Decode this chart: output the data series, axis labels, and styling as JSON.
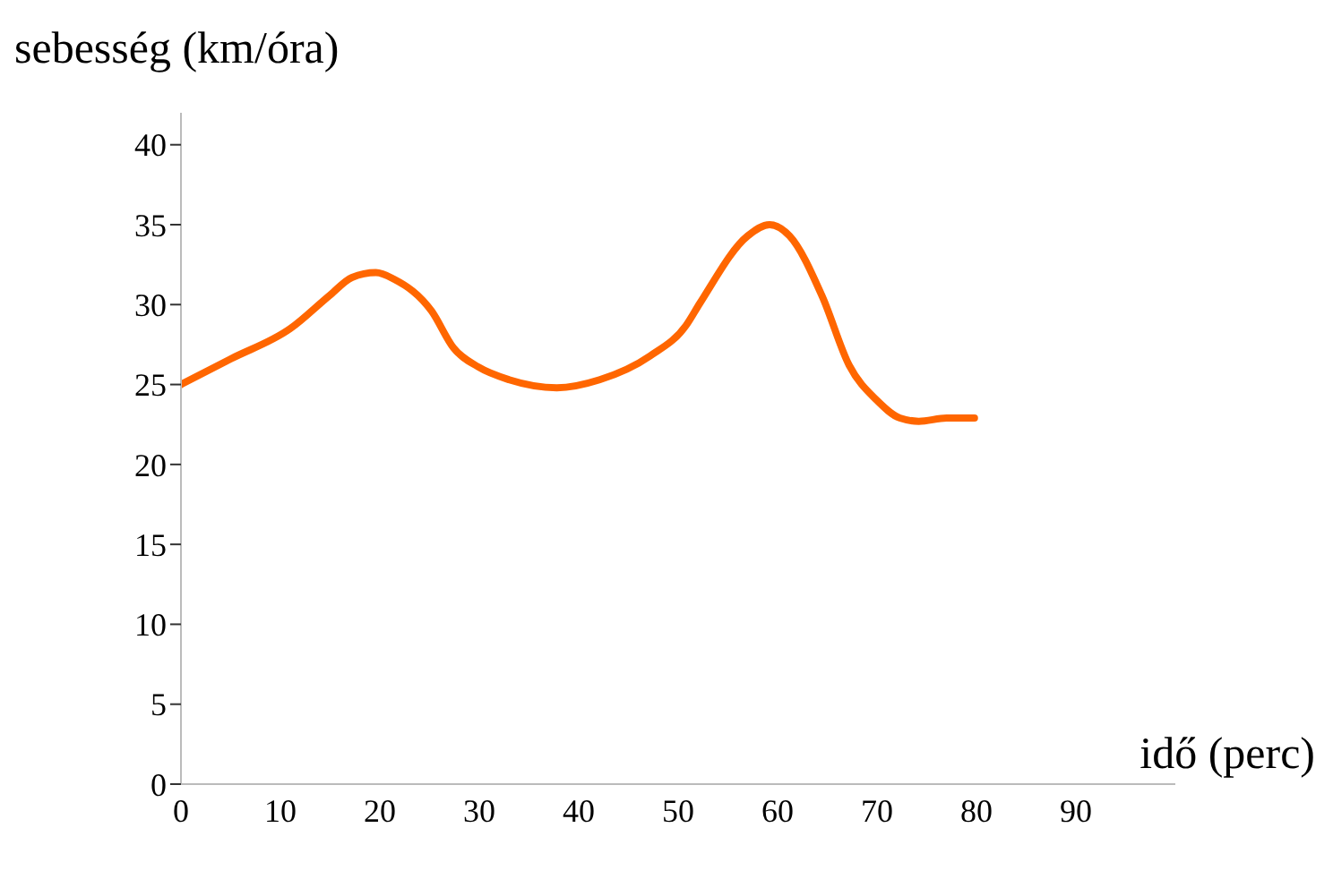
{
  "chart_data": {
    "type": "line",
    "xlabel": "idő (perc)",
    "ylabel": "sebesség (km/óra)",
    "x": [
      0,
      5,
      11,
      15,
      17.2,
      19.6,
      21.4,
      25.2,
      27.4,
      29.9,
      33,
      37.8,
      42.1,
      47.2,
      50.8,
      52.2,
      57,
      59.2,
      61.2,
      64.5,
      67.2,
      70,
      72.3,
      74.2,
      77,
      79.8
    ],
    "series": [
      {
        "color": "#ff6600",
        "values": [
          25,
          26.6,
          28.5,
          30.6,
          31.7,
          32,
          31.6,
          29.6,
          27.3,
          26.1,
          25.3,
          24.8,
          25.3,
          26.8,
          28.7,
          30.1,
          34.3,
          35,
          34.3,
          30.5,
          26.2,
          24,
          22.9,
          22.7,
          22.9,
          22.9
        ]
      }
    ],
    "xlim": [
      0,
      100
    ],
    "xticks": [
      0,
      10,
      20,
      30,
      40,
      50,
      60,
      70,
      80,
      90
    ],
    "ylim": [
      0,
      42
    ],
    "yticks": [
      0,
      5,
      10,
      15,
      20,
      25,
      30,
      35,
      40
    ],
    "grid": false,
    "legend": false,
    "marker": "none",
    "line_style": "solid"
  }
}
